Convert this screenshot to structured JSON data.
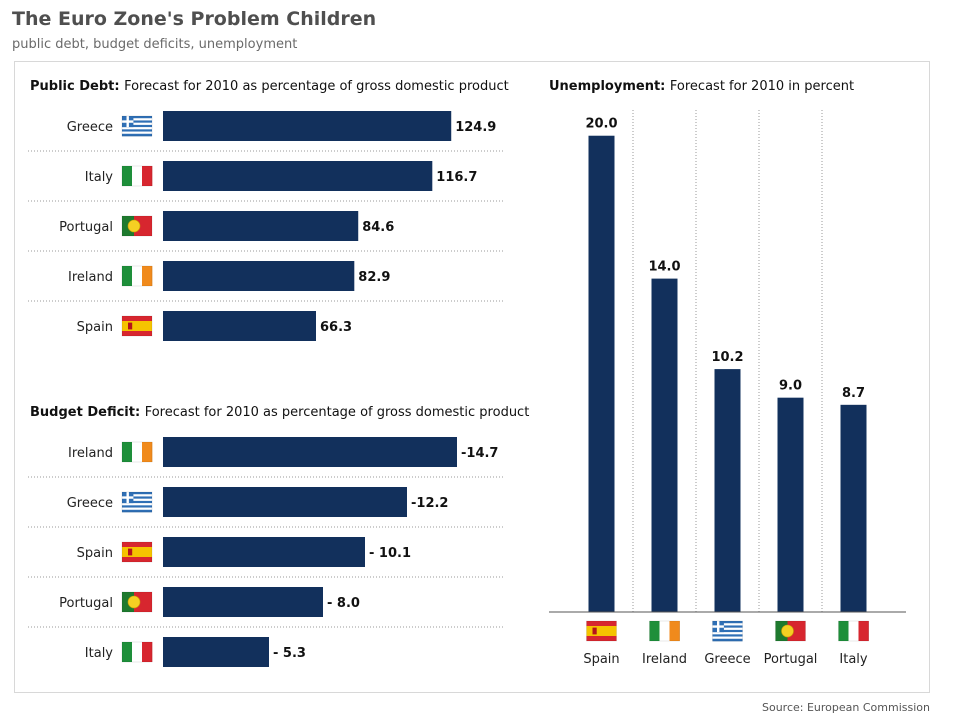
{
  "header": {
    "title": "The Euro Zone's Problem Children",
    "subtitle": "public debt, budget deficits, unemployment"
  },
  "footer": {
    "source": "Source: European Commission"
  },
  "colors": {
    "bar": "#12305c",
    "divider": "#9a9a9a",
    "title": "#4f4f4f"
  },
  "flags": {
    "Greece": "greece-flag-icon",
    "Italy": "italy-flag-icon",
    "Portugal": "portugal-flag-icon",
    "Ireland": "ireland-flag-icon",
    "Spain": "spain-flag-icon"
  },
  "chart_data": [
    {
      "id": "public-debt",
      "type": "bar",
      "orientation": "horizontal",
      "title_bold": "Public Debt:",
      "title": "Forecast for 2010 as percentage of gross domestic product",
      "categories": [
        "Greece",
        "Italy",
        "Portugal",
        "Ireland",
        "Spain"
      ],
      "values": [
        124.9,
        116.7,
        84.6,
        82.9,
        66.3
      ],
      "labels": [
        "124.9",
        "116.7",
        "84.6",
        "82.9",
        "66.3"
      ],
      "xlim": [
        0,
        130
      ]
    },
    {
      "id": "budget-deficit",
      "type": "bar",
      "orientation": "horizontal",
      "title_bold": "Budget Deficit:",
      "title": "Forecast for 2010 as percentage of gross domestic product",
      "categories": [
        "Ireland",
        "Greece",
        "Spain",
        "Portugal",
        "Italy"
      ],
      "values": [
        -14.7,
        -12.2,
        -10.1,
        -8.0,
        -5.3
      ],
      "labels": [
        "-14.7",
        "-12.2",
        "- 10.1",
        "- 8.0",
        "- 5.3"
      ],
      "xlim": [
        0,
        15
      ]
    },
    {
      "id": "unemployment",
      "type": "bar",
      "orientation": "vertical",
      "title_bold": "Unemployment:",
      "title": "Forecast for 2010 in percent",
      "categories": [
        "Spain",
        "Ireland",
        "Greece",
        "Portugal",
        "Italy"
      ],
      "values": [
        20.0,
        14.0,
        10.2,
        9.0,
        8.7
      ],
      "labels": [
        "20.0",
        "14.0",
        "10.2",
        "9.0",
        "8.7"
      ],
      "ylim": [
        0,
        21.5
      ]
    }
  ]
}
